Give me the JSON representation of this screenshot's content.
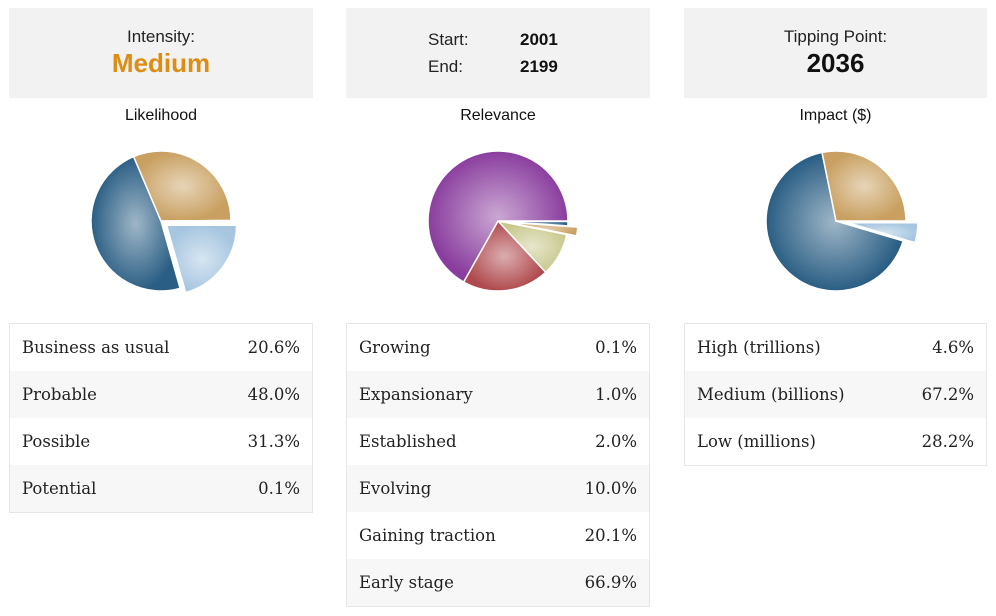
{
  "panels": [
    {
      "header": {
        "type": "single",
        "label": "Intensity:",
        "value": "Medium"
      },
      "chart_title": "Likelihood",
      "rows": [
        {
          "label": "Business as usual",
          "value": "20.6%"
        },
        {
          "label": "Probable",
          "value": "48.0%"
        },
        {
          "label": "Possible",
          "value": "31.3%"
        },
        {
          "label": "Potential",
          "value": "0.1%"
        }
      ]
    },
    {
      "header": {
        "type": "range",
        "start_label": "Start:",
        "start_value": "2001",
        "end_label": "End:",
        "end_value": "2199"
      },
      "chart_title": "Relevance",
      "rows": [
        {
          "label": "Growing",
          "value": "0.1%"
        },
        {
          "label": "Expansionary",
          "value": "1.0%"
        },
        {
          "label": "Established",
          "value": "2.0%"
        },
        {
          "label": "Evolving",
          "value": "10.0%"
        },
        {
          "label": "Gaining traction",
          "value": "20.1%"
        },
        {
          "label": "Early stage",
          "value": "66.9%"
        }
      ]
    },
    {
      "header": {
        "type": "single",
        "label": "Tipping Point:",
        "value": "2036"
      },
      "chart_title": "Impact ($)",
      "rows": [
        {
          "label": "High (trillions)",
          "value": "4.6%"
        },
        {
          "label": "Medium (billions)",
          "value": "67.2%"
        },
        {
          "label": "Low (millions)",
          "value": "28.2%"
        }
      ]
    }
  ],
  "chart_data": [
    {
      "type": "pie",
      "title": "Likelihood",
      "categories": [
        "Business as usual",
        "Probable",
        "Possible",
        "Potential"
      ],
      "values": [
        20.6,
        48.0,
        31.3,
        0.1
      ],
      "colors": [
        "#a6c6e0",
        "#2a5e84",
        "#c9a061",
        "#d9c89a"
      ]
    },
    {
      "type": "pie",
      "title": "Relevance",
      "categories": [
        "Growing",
        "Expansionary",
        "Established",
        "Evolving",
        "Gaining traction",
        "Early stage"
      ],
      "values": [
        0.1,
        1.0,
        2.0,
        10.0,
        20.1,
        66.9
      ],
      "colors": [
        "#d9c89a",
        "#2a5e84",
        "#c9a061",
        "#c9c98f",
        "#b04a4e",
        "#8a3d9e"
      ]
    },
    {
      "type": "pie",
      "title": "Impact ($)",
      "categories": [
        "High (trillions)",
        "Medium (billions)",
        "Low (millions)"
      ],
      "values": [
        4.6,
        67.2,
        28.2
      ],
      "colors": [
        "#a6c6e0",
        "#2a5e84",
        "#c9a061"
      ]
    }
  ]
}
